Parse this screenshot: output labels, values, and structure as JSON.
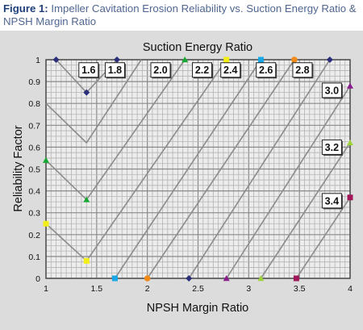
{
  "figure": {
    "label": "Figure 1:",
    "title": "Impeller Cavitation Erosion Reliability vs. Suction Energy Ratio & NPSH Margin Ratio"
  },
  "colors": {
    "panel_bg": "#dcdcdc",
    "grid_minor": "#b4b4b4",
    "grid_major": "#8a8a8a",
    "curve_line": "#8c8c8c",
    "navy": "#2b2f7a",
    "green": "#16a832",
    "yellow": "#f2ee18",
    "cyan": "#18a8e8",
    "orange": "#f08a18",
    "purple": "#8a1e8c",
    "lime": "#9ed43a",
    "maroon": "#a0185a"
  },
  "chart_data": {
    "type": "line",
    "title": "Suction Energy Ratio",
    "xlabel": "NPSH Margin Ratio",
    "ylabel": "Reliability Factor",
    "xlim": [
      1,
      4
    ],
    "ylim": [
      0,
      1
    ],
    "x_ticks": [
      "1",
      "1.5",
      "2",
      "2.5",
      "3",
      "3.5",
      "4"
    ],
    "y_ticks": [
      "0",
      "0.1",
      "0.2",
      "0.3",
      "0.4",
      "0.5",
      "0.6",
      "0.7",
      "0.8",
      "0.9",
      "1"
    ],
    "grid": true,
    "series": [
      {
        "name": "1.6",
        "color": "navy",
        "marker": "diamond",
        "x": [
          1.1,
          1.4,
          1.7
        ],
        "y": [
          1.0,
          0.85,
          1.0
        ],
        "label_at": [
          1.42,
          0.953
        ]
      },
      {
        "name": "1.8",
        "color": "navy",
        "marker": "none",
        "x": [
          1.0,
          1.4,
          1.94
        ],
        "y": [
          0.8,
          0.62,
          1.0
        ],
        "label_at": [
          1.68,
          0.953
        ]
      },
      {
        "name": "2.0",
        "color": "green",
        "marker": "triangle",
        "x": [
          1.0,
          1.4,
          2.37
        ],
        "y": [
          0.54,
          0.36,
          1.0
        ],
        "label_at": [
          2.13,
          0.953
        ]
      },
      {
        "name": "2.2",
        "color": "yellow",
        "marker": "square",
        "x": [
          1.0,
          1.4,
          2.78
        ],
        "y": [
          0.25,
          0.08,
          1.0
        ],
        "label_at": [
          2.54,
          0.953
        ]
      },
      {
        "name": "2.4",
        "color": "cyan",
        "marker": "square",
        "x": [
          1.68,
          3.12
        ],
        "y": [
          0.0,
          1.0
        ],
        "label_at": [
          2.82,
          0.953
        ]
      },
      {
        "name": "2.6",
        "color": "orange",
        "marker": "circle",
        "x": [
          2.0,
          3.45
        ],
        "y": [
          0.0,
          1.0
        ],
        "label_at": [
          3.17,
          0.953
        ]
      },
      {
        "name": "2.8",
        "color": "navy",
        "marker": "diamond",
        "x": [
          2.41,
          3.8
        ],
        "y": [
          0.0,
          1.0
        ],
        "label_at": [
          3.53,
          0.953
        ]
      },
      {
        "name": "3.0",
        "color": "purple",
        "marker": "triangle",
        "x": [
          2.78,
          4.0
        ],
        "y": [
          0.0,
          0.88
        ],
        "label_at": [
          3.82,
          0.86
        ]
      },
      {
        "name": "3.2",
        "color": "lime",
        "marker": "triangle",
        "x": [
          3.12,
          4.0
        ],
        "y": [
          0.0,
          0.62
        ],
        "label_at": [
          3.82,
          0.6
        ]
      },
      {
        "name": "3.4",
        "color": "maroon",
        "marker": "square",
        "x": [
          3.47,
          4.0
        ],
        "y": [
          0.0,
          0.37
        ],
        "label_at": [
          3.82,
          0.355
        ]
      }
    ]
  }
}
